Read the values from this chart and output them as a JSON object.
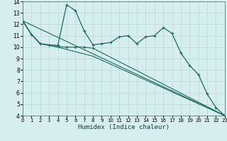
{
  "xlabel": "Humidex (Indice chaleur)",
  "xlim": [
    0,
    23
  ],
  "ylim": [
    4,
    14
  ],
  "xticks": [
    0,
    1,
    2,
    3,
    4,
    5,
    6,
    7,
    8,
    9,
    10,
    11,
    12,
    13,
    14,
    15,
    16,
    17,
    18,
    19,
    20,
    21,
    22,
    23
  ],
  "yticks": [
    4,
    5,
    6,
    7,
    8,
    9,
    10,
    11,
    12,
    13,
    14
  ],
  "bg_color": "#d6eeee",
  "grid_color": "#b8d8d8",
  "line_color": "#1a6b5a",
  "line1_x": [
    0,
    1,
    2,
    3,
    4,
    5,
    6,
    7,
    8,
    9,
    10,
    11,
    12,
    13,
    14,
    15,
    16,
    17,
    18,
    19,
    20,
    21,
    22,
    23
  ],
  "line1_y": [
    12.3,
    11.1,
    10.3,
    10.2,
    10.15,
    13.7,
    13.2,
    11.4,
    10.2,
    10.3,
    10.4,
    10.9,
    11.0,
    10.3,
    10.9,
    11.0,
    11.7,
    11.2,
    9.5,
    8.4,
    7.6,
    5.9,
    4.7,
    4.0
  ],
  "line2_x": [
    0,
    1,
    2,
    3,
    4,
    5,
    6,
    7,
    8,
    23
  ],
  "line2_y": [
    12.3,
    11.1,
    10.3,
    10.15,
    10.05,
    10.0,
    10.0,
    10.0,
    9.9,
    4.0
  ],
  "line3_x": [
    0,
    1,
    2,
    3,
    4,
    5,
    6,
    7,
    8,
    23
  ],
  "line3_y": [
    12.3,
    11.1,
    10.3,
    10.15,
    10.0,
    9.8,
    9.6,
    9.4,
    9.2,
    4.0
  ],
  "line4_x": [
    0,
    23
  ],
  "line4_y": [
    12.3,
    4.0
  ]
}
